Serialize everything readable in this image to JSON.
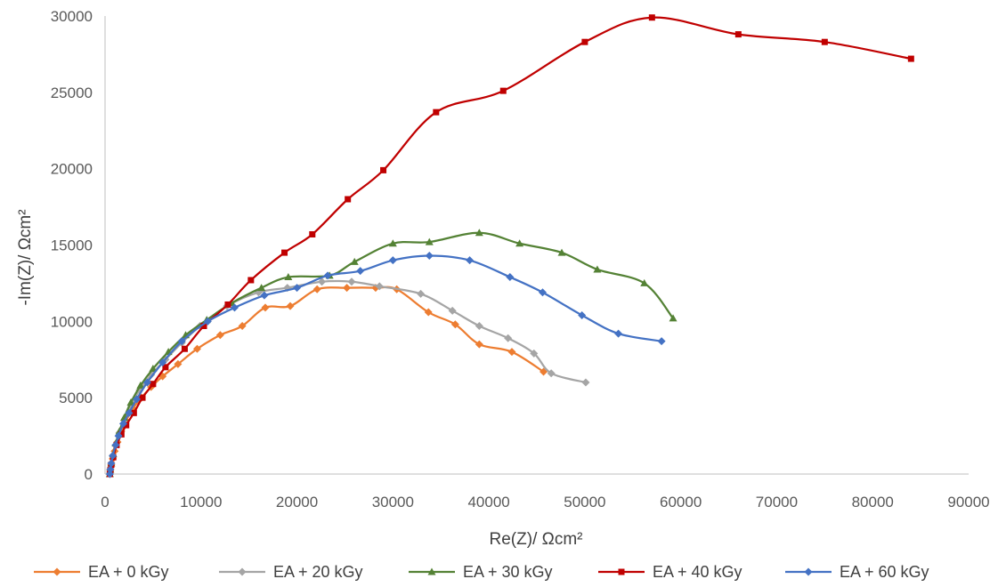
{
  "chart_data": {
    "type": "scatter",
    "title": "",
    "xlabel": "Re(Z)/ Ωcm²",
    "ylabel": "-Im(Z)/ Ωcm²",
    "xlim": [
      0,
      90000
    ],
    "ylim": [
      0,
      30000
    ],
    "x_ticks": [
      0,
      10000,
      20000,
      30000,
      40000,
      50000,
      60000,
      70000,
      80000,
      90000
    ],
    "y_ticks": [
      0,
      5000,
      10000,
      15000,
      20000,
      25000,
      30000
    ],
    "x_tick_labels": [
      "0",
      "10000",
      "20000",
      "30000",
      "40000",
      "50000",
      "60000",
      "70000",
      "80000",
      "90000"
    ],
    "y_tick_labels": [
      "0",
      "5000",
      "10000",
      "15000",
      "20000",
      "25000",
      "30000"
    ],
    "grid": false,
    "smooth_lines": true,
    "legend_position": "bottom",
    "series": [
      {
        "name": "EA + 0 kGy",
        "color": "#ED7D31",
        "marker": "diamond",
        "points": [
          [
            500,
            0
          ],
          [
            550,
            250
          ],
          [
            650,
            600
          ],
          [
            800,
            1000
          ],
          [
            1000,
            1500
          ],
          [
            1300,
            2100
          ],
          [
            1700,
            2800
          ],
          [
            2200,
            3500
          ],
          [
            2900,
            4300
          ],
          [
            3800,
            5000
          ],
          [
            4800,
            5700
          ],
          [
            6000,
            6400
          ],
          [
            7600,
            7200
          ],
          [
            9600,
            8200
          ],
          [
            12000,
            9100
          ],
          [
            14300,
            9700
          ],
          [
            16700,
            10900
          ],
          [
            19300,
            11000
          ],
          [
            22100,
            12100
          ],
          [
            25200,
            12200
          ],
          [
            28200,
            12200
          ],
          [
            30400,
            12100
          ],
          [
            33700,
            10600
          ],
          [
            36500,
            9800
          ],
          [
            39000,
            8500
          ],
          [
            42400,
            8000
          ],
          [
            45700,
            6700
          ]
        ]
      },
      {
        "name": "EA + 20 kGy",
        "color": "#A5A5A5",
        "marker": "diamond",
        "points": [
          [
            500,
            0
          ],
          [
            550,
            300
          ],
          [
            650,
            700
          ],
          [
            800,
            1200
          ],
          [
            1100,
            1900
          ],
          [
            1500,
            2700
          ],
          [
            2000,
            3500
          ],
          [
            2700,
            4500
          ],
          [
            3600,
            5500
          ],
          [
            4800,
            6500
          ],
          [
            6300,
            7500
          ],
          [
            8000,
            8600
          ],
          [
            9900,
            9700
          ],
          [
            12700,
            11000
          ],
          [
            16000,
            11900
          ],
          [
            19000,
            12200
          ],
          [
            22600,
            12600
          ],
          [
            25700,
            12600
          ],
          [
            28600,
            12300
          ],
          [
            32900,
            11800
          ],
          [
            36200,
            10700
          ],
          [
            39000,
            9700
          ],
          [
            42000,
            8900
          ],
          [
            44700,
            7900
          ],
          [
            46500,
            6600
          ],
          [
            50100,
            6000
          ]
        ]
      },
      {
        "name": "EA + 30 kGy",
        "color": "#548235",
        "marker": "triangle",
        "points": [
          [
            500,
            0
          ],
          [
            550,
            300
          ],
          [
            650,
            700
          ],
          [
            850,
            1300
          ],
          [
            1100,
            2000
          ],
          [
            1500,
            2800
          ],
          [
            2000,
            3700
          ],
          [
            2700,
            4700
          ],
          [
            3700,
            5800
          ],
          [
            5000,
            6900
          ],
          [
            6600,
            8000
          ],
          [
            8400,
            9100
          ],
          [
            10600,
            10100
          ],
          [
            13200,
            11200
          ],
          [
            16300,
            12200
          ],
          [
            19100,
            12900
          ],
          [
            23400,
            13000
          ],
          [
            26000,
            13900
          ],
          [
            30000,
            15100
          ],
          [
            33800,
            15200
          ],
          [
            39000,
            15800
          ],
          [
            43200,
            15100
          ],
          [
            47600,
            14500
          ],
          [
            51300,
            13400
          ],
          [
            56200,
            12500
          ],
          [
            59200,
            10200
          ]
        ]
      },
      {
        "name": "EA + 40 kGy",
        "color": "#C00000",
        "marker": "square",
        "points": [
          [
            500,
            0
          ],
          [
            550,
            250
          ],
          [
            650,
            600
          ],
          [
            850,
            1100
          ],
          [
            1200,
            1900
          ],
          [
            1700,
            2600
          ],
          [
            2200,
            3200
          ],
          [
            3000,
            4000
          ],
          [
            3900,
            5000
          ],
          [
            5000,
            5900
          ],
          [
            6300,
            7000
          ],
          [
            8300,
            8200
          ],
          [
            10300,
            9700
          ],
          [
            12800,
            11100
          ],
          [
            15200,
            12700
          ],
          [
            18700,
            14500
          ],
          [
            21600,
            15700
          ],
          [
            25300,
            18000
          ],
          [
            29000,
            19900
          ],
          [
            34500,
            23700
          ],
          [
            41500,
            25100
          ],
          [
            50000,
            28300
          ],
          [
            57000,
            29900
          ],
          [
            66000,
            28800
          ],
          [
            75000,
            28300
          ],
          [
            84000,
            27200
          ]
        ]
      },
      {
        "name": "EA + 60 kGy",
        "color": "#4472C4",
        "marker": "diamond",
        "points": [
          [
            500,
            0
          ],
          [
            550,
            300
          ],
          [
            650,
            700
          ],
          [
            800,
            1200
          ],
          [
            1100,
            1900
          ],
          [
            1400,
            2500
          ],
          [
            1900,
            3300
          ],
          [
            2500,
            4000
          ],
          [
            3300,
            4900
          ],
          [
            4400,
            6000
          ],
          [
            6000,
            7300
          ],
          [
            8000,
            8700
          ],
          [
            10700,
            10000
          ],
          [
            13500,
            10900
          ],
          [
            16600,
            11700
          ],
          [
            20000,
            12200
          ],
          [
            23200,
            13000
          ],
          [
            26600,
            13300
          ],
          [
            30000,
            14000
          ],
          [
            33800,
            14300
          ],
          [
            38000,
            14000
          ],
          [
            42200,
            12900
          ],
          [
            45600,
            11900
          ],
          [
            49700,
            10400
          ],
          [
            53500,
            9200
          ],
          [
            58000,
            8700
          ]
        ]
      }
    ]
  }
}
